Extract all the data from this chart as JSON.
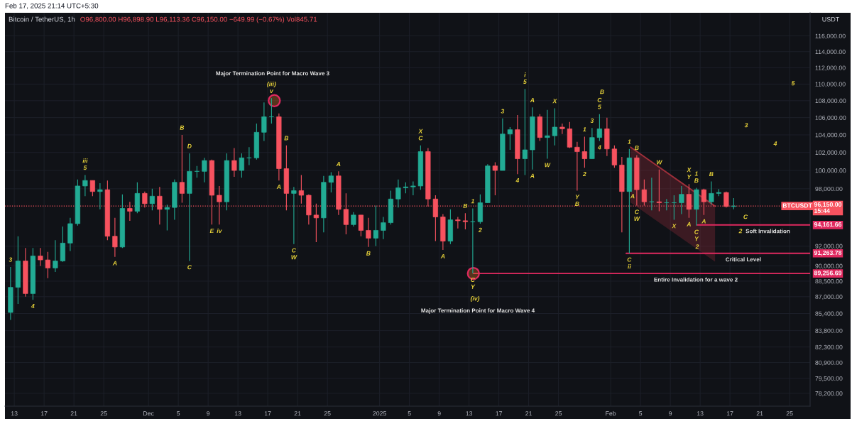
{
  "chart_data": {
    "type": "candlestick",
    "title": "Bitcoin / TetherUS, 1h",
    "subtitle": "O96,800.00 H96,898.90 L96,113.36 C96,150.00 −649.99 (−0.67%) Vol845.71",
    "ylabel": "USDT",
    "x": [
      "2024-11-12T12:00",
      "2024-11-13T12:00",
      "2024-11-14T12:00",
      "2024-11-15T12:00",
      "2024-11-16T12:00",
      "2024-11-17T12:00",
      "2024-11-18T12:00",
      "2024-11-19T12:00",
      "2024-11-20T12:00",
      "2024-11-21T12:00",
      "2024-11-22T12:00",
      "2024-11-23T12:00",
      "2024-11-24T12:00",
      "2024-11-25T12:00",
      "2024-11-26T12:00",
      "2024-11-27T12:00",
      "2024-11-28T12:00",
      "2024-11-29T12:00",
      "2024-11-30T12:00",
      "2024-12-01T12:00",
      "2024-12-02T12:00",
      "2024-12-03T12:00",
      "2024-12-04T12:00",
      "2024-12-05T12:00",
      "2024-12-06T12:00",
      "2024-12-07T12:00",
      "2024-12-08T12:00",
      "2024-12-09T12:00",
      "2024-12-10T12:00",
      "2024-12-11T12:00",
      "2024-12-12T12:00",
      "2024-12-13T12:00",
      "2024-12-14T12:00",
      "2024-12-15T12:00",
      "2024-12-16T12:00",
      "2024-12-17T12:00",
      "2024-12-18T12:00",
      "2024-12-19T12:00",
      "2024-12-20T12:00",
      "2024-12-21T12:00",
      "2024-12-22T12:00",
      "2024-12-23T12:00",
      "2024-12-24T12:00",
      "2024-12-25T12:00",
      "2024-12-26T12:00",
      "2024-12-27T12:00",
      "2024-12-28T12:00",
      "2024-12-29T12:00",
      "2024-12-30T12:00",
      "2024-12-31T12:00",
      "2025-01-01T12:00",
      "2025-01-02T12:00",
      "2025-01-03T12:00",
      "2025-01-04T12:00",
      "2025-01-05T12:00",
      "2025-01-06T12:00",
      "2025-01-07T12:00",
      "2025-01-08T12:00",
      "2025-01-09T12:00",
      "2025-01-10T12:00",
      "2025-01-11T12:00",
      "2025-01-12T12:00",
      "2025-01-13T12:00",
      "2025-01-14T12:00",
      "2025-01-15T12:00",
      "2025-01-16T12:00",
      "2025-01-17T12:00",
      "2025-01-18T12:00",
      "2025-01-19T12:00",
      "2025-01-20T12:00",
      "2025-01-21T12:00",
      "2025-01-22T12:00",
      "2025-01-23T12:00",
      "2025-01-24T12:00",
      "2025-01-25T12:00",
      "2025-01-26T12:00",
      "2025-01-27T12:00",
      "2025-01-28T12:00",
      "2025-01-29T12:00",
      "2025-01-30T12:00",
      "2025-01-31T12:00",
      "2025-02-01T12:00",
      "2025-02-02T12:00",
      "2025-02-03T12:00",
      "2025-02-04T12:00",
      "2025-02-05T12:00",
      "2025-02-06T12:00",
      "2025-02-07T12:00",
      "2025-02-08T12:00",
      "2025-02-09T12:00",
      "2025-02-10T12:00",
      "2025-02-11T12:00",
      "2025-02-12T12:00",
      "2025-02-13T12:00",
      "2025-02-14T12:00",
      "2025-02-15T12:00",
      "2025-02-16T12:00",
      "2025-02-17T12:00"
    ],
    "ohlc": [
      [
        85500,
        89900,
        84800,
        87900
      ],
      [
        87900,
        93000,
        86300,
        90500
      ],
      [
        90500,
        91800,
        87000,
        87300
      ],
      [
        87300,
        91800,
        86700,
        91000
      ],
      [
        91000,
        91800,
        90000,
        90600
      ],
      [
        90600,
        91400,
        88800,
        89800
      ],
      [
        89800,
        92600,
        89400,
        90500
      ],
      [
        90500,
        94000,
        90400,
        92300
      ],
      [
        92300,
        94900,
        91500,
        94300
      ],
      [
        94300,
        99000,
        94100,
        98300
      ],
      [
        98300,
        99500,
        97200,
        98900
      ],
      [
        98900,
        98900,
        97200,
        97700
      ],
      [
        97700,
        98600,
        95800,
        97900
      ],
      [
        97900,
        98900,
        92600,
        93000
      ],
      [
        93000,
        94900,
        90900,
        91900
      ],
      [
        91900,
        97400,
        91800,
        95900
      ],
      [
        95900,
        96600,
        94600,
        95600
      ],
      [
        95600,
        98700,
        95400,
        97500
      ],
      [
        97500,
        97700,
        96000,
        96400
      ],
      [
        96400,
        98000,
        95700,
        97200
      ],
      [
        97200,
        98200,
        94200,
        95800
      ],
      [
        95800,
        96300,
        93600,
        96000
      ],
      [
        96000,
        99000,
        94700,
        98700
      ],
      [
        98700,
        104000,
        96500,
        97500
      ],
      [
        97500,
        101900,
        90500,
        99900
      ],
      [
        99900,
        100500,
        99200,
        99900
      ],
      [
        99900,
        101400,
        98700,
        101100
      ],
      [
        101100,
        101200,
        94200,
        97300
      ],
      [
        97300,
        98300,
        94200,
        96600
      ],
      [
        96600,
        101900,
        95700,
        101100
      ],
      [
        101100,
        102500,
        99300,
        100000
      ],
      [
        100000,
        101900,
        99200,
        101400
      ],
      [
        101400,
        102600,
        100600,
        101400
      ],
      [
        101400,
        105300,
        101200,
        104300
      ],
      [
        104300,
        107800,
        103300,
        106100
      ],
      [
        106100,
        108300,
        105300,
        106100
      ],
      [
        106100,
        106500,
        98900,
        100200
      ],
      [
        100200,
        102800,
        95700,
        97500
      ],
      [
        97500,
        98200,
        92200,
        97800
      ],
      [
        97800,
        99500,
        96400,
        97300
      ],
      [
        97300,
        97400,
        94200,
        95200
      ],
      [
        95200,
        96400,
        92400,
        94900
      ],
      [
        94900,
        99400,
        93400,
        98700
      ],
      [
        98700,
        99800,
        97600,
        99400
      ],
      [
        99400,
        99900,
        95200,
        95800
      ],
      [
        95800,
        97500,
        93200,
        94200
      ],
      [
        94200,
        95500,
        94000,
        95200
      ],
      [
        95200,
        95200,
        93000,
        93600
      ],
      [
        93600,
        94900,
        91900,
        92800
      ],
      [
        92800,
        96200,
        92000,
        93600
      ],
      [
        93600,
        95000,
        92700,
        94400
      ],
      [
        94400,
        97800,
        94200,
        96900
      ],
      [
        96900,
        99000,
        96000,
        98100
      ],
      [
        98100,
        98700,
        97500,
        98200
      ],
      [
        98200,
        98800,
        97300,
        98300
      ],
      [
        98300,
        102800,
        97900,
        102100
      ],
      [
        102100,
        102500,
        96100,
        96900
      ],
      [
        96900,
        97300,
        92500,
        95000
      ],
      [
        95000,
        95300,
        91600,
        92500
      ],
      [
        92500,
        95800,
        92200,
        94700
      ],
      [
        94700,
        95000,
        93800,
        94600
      ],
      [
        94600,
        95400,
        93700,
        94500
      ],
      [
        94500,
        95900,
        89256.69,
        94500
      ],
      [
        94500,
        97400,
        94300,
        96500
      ],
      [
        96500,
        100700,
        96500,
        100500
      ],
      [
        100500,
        100900,
        97300,
        100000
      ],
      [
        100000,
        105900,
        100000,
        104100
      ],
      [
        104100,
        104900,
        102300,
        104600
      ],
      [
        104600,
        106300,
        99600,
        101300
      ],
      [
        101300,
        109400,
        99500,
        102300
      ],
      [
        102300,
        107200,
        100100,
        106100
      ],
      [
        106100,
        106400,
        103300,
        103700
      ],
      [
        103700,
        106900,
        101300,
        103900
      ],
      [
        103900,
        107100,
        102800,
        104900
      ],
      [
        104900,
        105300,
        104100,
        104700
      ],
      [
        104700,
        105500,
        102500,
        102600
      ],
      [
        102600,
        103200,
        97800,
        102100
      ],
      [
        102100,
        103800,
        100300,
        101300
      ],
      [
        101300,
        104800,
        101300,
        103700
      ],
      [
        103700,
        106400,
        103300,
        104700
      ],
      [
        104700,
        106000,
        101600,
        102400
      ],
      [
        102400,
        102800,
        100300,
        100600
      ],
      [
        100600,
        101500,
        93400,
        97700
      ],
      [
        97700,
        102400,
        91263.78,
        101400
      ],
      [
        101400,
        101700,
        96200,
        97900
      ],
      [
        97900,
        99000,
        96200,
        96600
      ],
      [
        96600,
        99200,
        95700,
        96600
      ],
      [
        96600,
        100100,
        95600,
        96500
      ],
      [
        96500,
        96900,
        95700,
        96500
      ],
      [
        96500,
        97300,
        94700,
        96500
      ],
      [
        96500,
        98300,
        95300,
        97400
      ],
      [
        97400,
        98500,
        94900,
        95800
      ],
      [
        95800,
        98100,
        94100,
        97900
      ],
      [
        97900,
        98000,
        95200,
        96600
      ],
      [
        96600,
        98800,
        96300,
        97500
      ],
      [
        97500,
        97970,
        97200,
        97600
      ],
      [
        97600,
        97700,
        96000,
        96100
      ],
      [
        96100,
        97000,
        95800,
        96150
      ]
    ],
    "colors": [
      "#22ab94",
      "#22ab94",
      "#f7525f",
      "#22ab94",
      "#f7525f",
      "#f7525f",
      "#22ab94",
      "#22ab94",
      "#22ab94",
      "#22ab94",
      "#22ab94",
      "#f7525f",
      "#22ab94",
      "#f7525f",
      "#f7525f",
      "#22ab94",
      "#f7525f",
      "#22ab94",
      "#f7525f",
      "#22ab94",
      "#f7525f",
      "#22ab94",
      "#22ab94",
      "#f7525f",
      "#22ab94",
      "#22ab94",
      "#22ab94",
      "#f7525f",
      "#f7525f",
      "#22ab94",
      "#f7525f",
      "#22ab94",
      "#22ab94",
      "#22ab94",
      "#22ab94",
      "#22ab94",
      "#f7525f",
      "#f7525f",
      "#22ab94",
      "#f7525f",
      "#f7525f",
      "#f7525f",
      "#22ab94",
      "#22ab94",
      "#f7525f",
      "#f7525f",
      "#22ab94",
      "#f7525f",
      "#f7525f",
      "#22ab94",
      "#22ab94",
      "#22ab94",
      "#22ab94",
      "#22ab94",
      "#22ab94",
      "#22ab94",
      "#f7525f",
      "#f7525f",
      "#f7525f",
      "#22ab94",
      "#f7525f",
      "#f7525f",
      "#22ab94",
      "#22ab94",
      "#22ab94",
      "#f7525f",
      "#22ab94",
      "#22ab94",
      "#f7525f",
      "#22ab94",
      "#22ab94",
      "#f7525f",
      "#22ab94",
      "#22ab94",
      "#f7525f",
      "#f7525f",
      "#f7525f",
      "#f7525f",
      "#22ab94",
      "#22ab94",
      "#f7525f",
      "#f7525f",
      "#f7525f",
      "#22ab94",
      "#f7525f",
      "#f7525f",
      "#22ab94",
      "#f7525f",
      "#22ab94",
      "#22ab94",
      "#22ab94",
      "#f7525f",
      "#22ab94",
      "#f7525f",
      "#22ab94",
      "#22ab94",
      "#f7525f",
      "#22ab94"
    ],
    "series": [
      {
        "type": "line",
        "x": [
          "2025-02-03T16:00",
          "2025-02-15T00:00"
        ],
        "values": [
          102600,
          96130
        ],
        "lower": [
          96520,
          90420
        ],
        "upper": [
          102600,
          96130
        ],
        "color": "#9e2f3a"
      },
      {
        "type": "line",
        "x": [
          "2025-01-13T14:00",
          "2025-02-27T18:00"
        ],
        "values": [
          89256.69,
          89256.69
        ],
        "color": "#e0295f",
        "value_labels": [
          null,
          "89,256.69"
        ]
      },
      {
        "type": "line",
        "x": [
          "2025-02-03T02:00",
          "2025-02-27T18:00"
        ],
        "values": [
          91263.78,
          91263.78
        ],
        "color": "#e0295f",
        "value_labels": [
          null,
          "91,263.78"
        ]
      },
      {
        "type": "line",
        "x": [
          "2025-02-12T15:00",
          "2025-02-27T18:00"
        ],
        "values": [
          94161.66,
          94161.66
        ],
        "color": "#e0295f",
        "value_labels": [
          null,
          "94,161.66"
        ]
      },
      {
        "type": "scatter",
        "x": [
          "2024-12-17T21:00",
          "2025-01-13T14:00"
        ],
        "values": [
          108000,
          89256.69
        ],
        "marker": "circle",
        "color": "#e0295f"
      }
    ],
    "ref_lines": [
      {
        "axis": "y",
        "value": 96150,
        "label": "96,150.00\n15:44",
        "color": "#f7525f",
        "line_style": "dotted"
      }
    ],
    "xlim": [
      "2024-11-11T18:00",
      "2025-02-27T18:00"
    ],
    "xticks": [
      {
        "value": "2024-11-13",
        "label": "13"
      },
      {
        "value": "2024-11-17",
        "label": "17"
      },
      {
        "value": "2024-11-21",
        "label": "21"
      },
      {
        "value": "2024-11-25",
        "label": "25"
      },
      {
        "value": "2024-12-01",
        "label": "Dec"
      },
      {
        "value": "2024-12-05",
        "label": "5"
      },
      {
        "value": "2024-12-09",
        "label": "9"
      },
      {
        "value": "2024-12-13",
        "label": "13"
      },
      {
        "value": "2024-12-17",
        "label": "17"
      },
      {
        "value": "2024-12-21",
        "label": "21"
      },
      {
        "value": "2024-12-25",
        "label": "25"
      },
      {
        "value": "2025-01-01",
        "label": "2025"
      },
      {
        "value": "2025-01-05",
        "label": "5"
      },
      {
        "value": "2025-01-09",
        "label": "9"
      },
      {
        "value": "2025-01-13",
        "label": "13"
      },
      {
        "value": "2025-01-17",
        "label": "17"
      },
      {
        "value": "2025-01-21",
        "label": "21"
      },
      {
        "value": "2025-01-25",
        "label": "25"
      },
      {
        "value": "2025-02-01",
        "label": "Feb"
      },
      {
        "value": "2025-02-05",
        "label": "5"
      },
      {
        "value": "2025-02-09",
        "label": "9"
      },
      {
        "value": "2025-02-13",
        "label": "13"
      },
      {
        "value": "2025-02-17",
        "label": "17"
      },
      {
        "value": "2025-02-21",
        "label": "21"
      },
      {
        "value": "2025-02-25",
        "label": "25"
      }
    ],
    "ylim": [
      77100,
      119000
    ],
    "yticks": [
      {
        "value": 116000,
        "label": "116,000.00"
      },
      {
        "value": 114000,
        "label": "114,000.00"
      },
      {
        "value": 112000,
        "label": "112,000.00"
      },
      {
        "value": 110000,
        "label": "110,000.00"
      },
      {
        "value": 108000,
        "label": "108,000.00"
      },
      {
        "value": 106000,
        "label": "106,000.00"
      },
      {
        "value": 104000,
        "label": "104,000.00"
      },
      {
        "value": 102000,
        "label": "102,000.00"
      },
      {
        "value": 100000,
        "label": "100,000.00"
      },
      {
        "value": 98000,
        "label": "98,000.00"
      },
      {
        "value": 92000,
        "label": "92,000.00"
      },
      {
        "value": 90000,
        "label": "90,000.00"
      },
      {
        "value": 88500,
        "label": "88,500.00"
      },
      {
        "value": 87000,
        "label": "87,000.00"
      },
      {
        "value": 85400,
        "label": "85,400.00"
      },
      {
        "value": 83800,
        "label": "83,800.00"
      },
      {
        "value": 82300,
        "label": "82,300.00"
      },
      {
        "value": 80900,
        "label": "80,900.00"
      },
      {
        "value": 79500,
        "label": "79,500.00"
      },
      {
        "value": 78200,
        "label": "78,200.00"
      }
    ],
    "log": true,
    "grid": true,
    "annotations": [
      "Feb 17, 2025 21:14 UTC+5:30",
      "C",
      "2",
      "3",
      "4",
      "5",
      "Major Termination Point for Macro Wave 3",
      "(iv)",
      "Major Termination Point for Macro Wave 4",
      "B",
      "A",
      "2",
      {
        "text": "3",
        "x": "2024-11-12T12:00",
        "y": 89900
      },
      {
        "text": "4",
        "x": "2024-11-15T12:00",
        "y": 86700
      },
      {
        "text": "5",
        "x": "2024-11-22T12:00",
        "y": 99500
      },
      {
        "text": "iii",
        "x": "2024-11-22T12:00",
        "y": 99500
      },
      {
        "text": "A",
        "x": "2024-11-26T12:00",
        "y": 90900
      },
      {
        "text": "B",
        "x": "2024-12-05T12:00",
        "y": 104000
      },
      {
        "text": "C",
        "x": "2024-12-06T12:00",
        "y": 90500
      },
      {
        "text": "D",
        "x": "2024-12-06T12:00",
        "y": 101900
      },
      {
        "text": "E",
        "x": "2024-12-09T12:00",
        "y": 94200
      },
      {
        "text": "iv",
        "x": "2024-12-10T12:00",
        "y": 94200
      },
      {
        "text": "v",
        "x": "2024-12-17T12:00",
        "y": 108300
      },
      {
        "text": "(iii)",
        "x": "2024-12-17T12:00",
        "y": 108300
      },
      {
        "text": "A",
        "x": "2024-12-18T12:00",
        "y": 98900
      },
      {
        "text": "B",
        "x": "2024-12-19T12:00",
        "y": 102800
      },
      {
        "text": "C",
        "x": "2024-12-20T12:00",
        "y": 92200
      },
      {
        "text": "W",
        "x": "2024-12-20T12:00",
        "y": 92200
      },
      {
        "text": "A",
        "x": "2024-12-26T12:00",
        "y": 99900
      },
      {
        "text": "B",
        "x": "2024-12-30T12:00",
        "y": 91900
      },
      {
        "text": "C",
        "x": "2025-01-06T12:00",
        "y": 102800
      },
      {
        "text": "X",
        "x": "2025-01-06T12:00",
        "y": 102800
      },
      {
        "text": "A",
        "x": "2025-01-09T12:00",
        "y": 91600
      },
      {
        "text": "B",
        "x": "2025-01-12T12:00",
        "y": 95400
      },
      {
        "text": "1",
        "x": "2025-01-13T12:00",
        "y": 95900
      },
      {
        "text": "C",
        "x": "2025-01-13T12:00",
        "y": 89256.69
      },
      {
        "text": "Y",
        "x": "2025-01-13T12:00",
        "y": 89256.69
      },
      {
        "text": "2",
        "x": "2025-01-14T12:00",
        "y": 94300
      },
      {
        "text": "3",
        "x": "2025-01-17T12:00",
        "y": 105900
      },
      {
        "text": "4",
        "x": "2025-01-19T12:00",
        "y": 99600
      },
      {
        "text": "5",
        "x": "2025-01-20T12:00",
        "y": 109400
      },
      {
        "text": "i",
        "x": "2025-01-20T12:00",
        "y": 109400
      },
      {
        "text": "A",
        "x": "2025-01-21T12:00",
        "y": 107200
      },
      {
        "text": "A",
        "x": "2025-01-21T12:00",
        "y": 100100
      },
      {
        "text": "W",
        "x": "2025-01-23T12:00",
        "y": 101300
      },
      {
        "text": "X",
        "x": "2025-01-24T12:00",
        "y": 107100
      },
      {
        "text": "Y",
        "x": "2025-01-27T12:00",
        "y": 97800
      },
      {
        "text": "B",
        "x": "2025-01-27T12:00",
        "y": 97800
      },
      {
        "text": "1",
        "x": "2025-01-28T12:00",
        "y": 103800
      },
      {
        "text": "2",
        "x": "2025-01-28T12:00",
        "y": 100300
      },
      {
        "text": "3",
        "x": "2025-01-29T12:00",
        "y": 104800
      },
      {
        "text": "4",
        "x": "2025-01-30T12:00",
        "y": 103300
      },
      {
        "text": "5",
        "x": "2025-01-30T12:00",
        "y": 106400
      },
      {
        "text": "C",
        "x": "2025-01-30T12:00",
        "y": 106400
      },
      {
        "text": "1",
        "x": "2025-02-03T12:00",
        "y": 102400
      },
      {
        "text": "C",
        "x": "2025-02-03T12:00",
        "y": 91263.78
      },
      {
        "text": "ii",
        "x": "2025-02-03T12:00",
        "y": 91263.78
      },
      {
        "text": "B",
        "x": "2025-02-04T12:00",
        "y": 101700
      },
      {
        "text": "C",
        "x": "2025-02-04T12:00",
        "y": 96200
      },
      {
        "text": "W",
        "x": "2025-02-04T12:00",
        "y": 96200
      },
      {
        "text": "W",
        "x": "2025-02-07T12:00",
        "y": 100100
      },
      {
        "text": "X",
        "x": "2025-02-09T12:00",
        "y": 94700
      },
      {
        "text": "Y",
        "x": "2025-02-11T12:00",
        "y": 98500
      },
      {
        "text": "X",
        "x": "2025-02-11T12:00",
        "y": 98500
      },
      {
        "text": "A",
        "x": "2025-02-11T12:00",
        "y": 94900
      },
      {
        "text": "B",
        "x": "2025-02-12T12:00",
        "y": 98100
      },
      {
        "text": "1",
        "x": "2025-02-12T12:00",
        "y": 98100
      },
      {
        "text": "C",
        "x": "2025-02-12T12:00",
        "y": 94100
      },
      {
        "text": "Y",
        "x": "2025-02-12T12:00",
        "y": 94100
      },
      {
        "text": "A",
        "x": "2025-02-13T12:00",
        "y": 95200
      },
      {
        "text": "B",
        "x": "2025-02-14T12:00",
        "y": 98800
      },
      {
        "text": "Entire Invalidation for a wave 2",
        "x": "2025-02-12T10:00",
        "y": 89256.69
      },
      {
        "text": "Critical Level",
        "x": "2025-02-18T19:00",
        "y": 91263.78
      },
      {
        "text": "Soft Invalidation",
        "x": "2025-02-22T02:00",
        "y": 94161.66
      },
      {
        "text": "BTCUSDT",
        "x": "2025-02-26T01:00",
        "y": 96150
      }
    ]
  }
}
